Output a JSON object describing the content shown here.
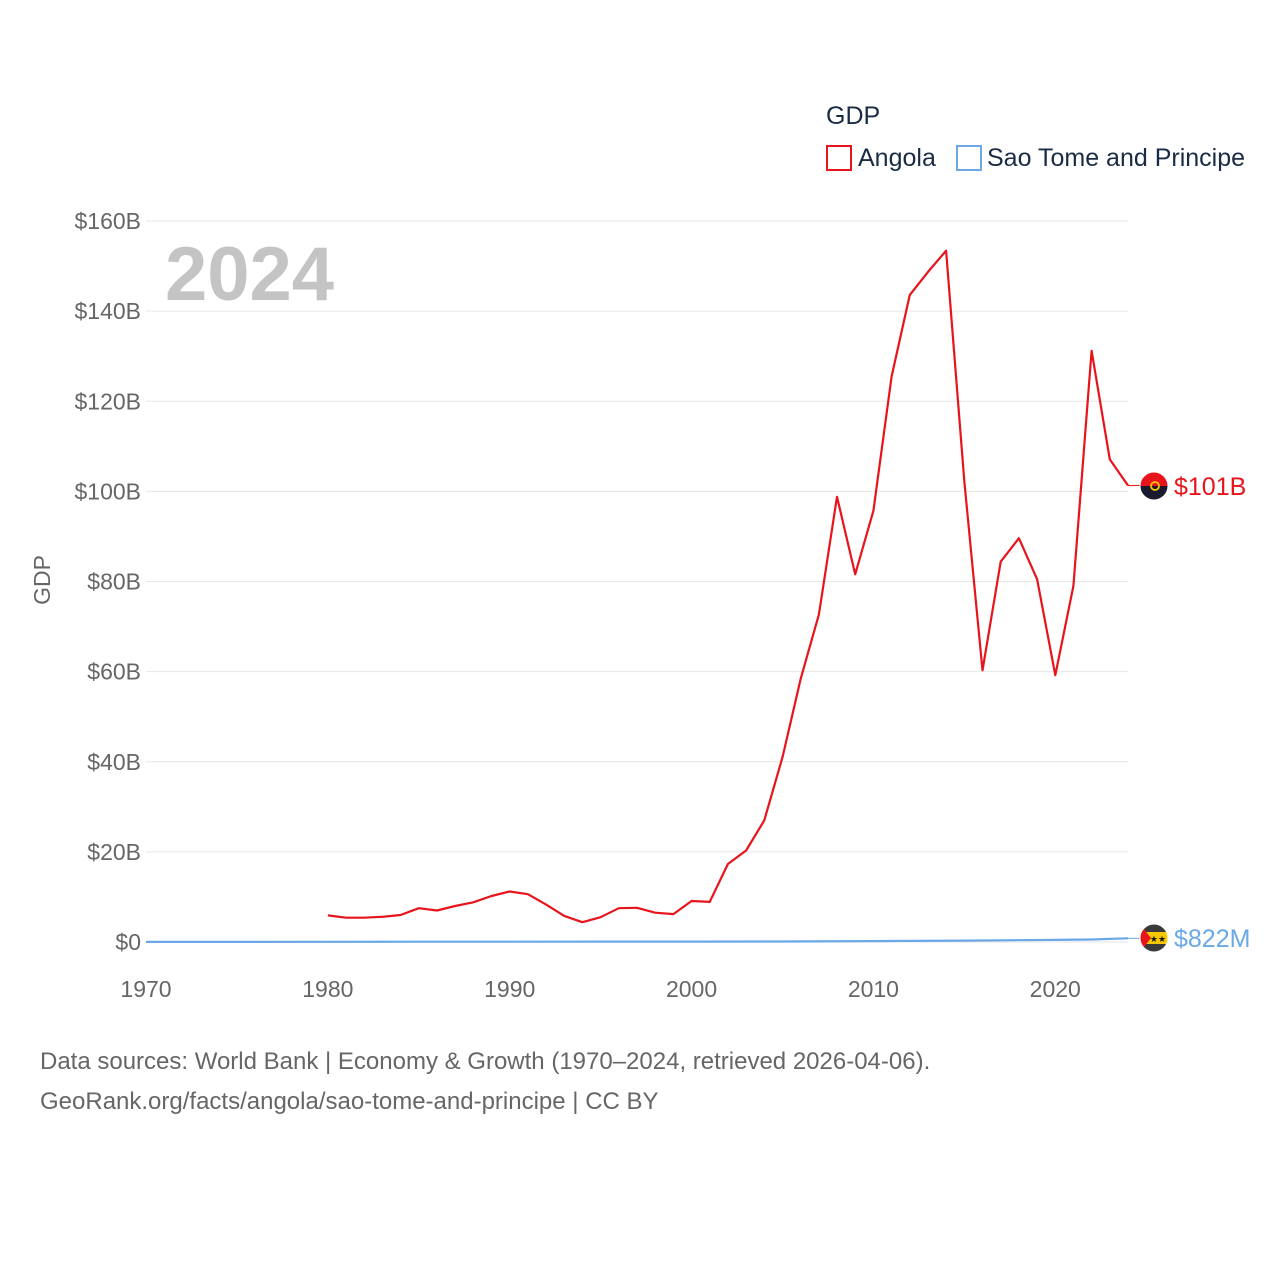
{
  "chart_data": {
    "type": "line",
    "title": "GDP",
    "ylabel": "GDP",
    "xlabel": "",
    "current_year": "2024",
    "xlim": [
      1970,
      2024
    ],
    "ylim": [
      0,
      160
    ],
    "y_unit": "billion USD",
    "x_ticks": [
      1970,
      1980,
      1990,
      2000,
      2010,
      2020
    ],
    "y_ticks": [
      {
        "value": 0,
        "label": "$0"
      },
      {
        "value": 20,
        "label": "$20B"
      },
      {
        "value": 40,
        "label": "$40B"
      },
      {
        "value": 60,
        "label": "$60B"
      },
      {
        "value": 80,
        "label": "$80B"
      },
      {
        "value": 100,
        "label": "$100B"
      },
      {
        "value": 120,
        "label": "$120B"
      },
      {
        "value": 140,
        "label": "$140B"
      },
      {
        "value": 160,
        "label": "$160B"
      }
    ],
    "legend_placement": "top-right",
    "series": [
      {
        "name": "Angola",
        "color": "#e8141b",
        "end_label": "$101B",
        "flag_icon": "angola-flag-icon",
        "x": [
          1980,
          1981,
          1982,
          1983,
          1984,
          1985,
          1986,
          1987,
          1988,
          1989,
          1990,
          1991,
          1992,
          1993,
          1994,
          1995,
          1996,
          1997,
          1998,
          1999,
          2000,
          2001,
          2002,
          2003,
          2004,
          2005,
          2006,
          2007,
          2008,
          2009,
          2010,
          2011,
          2012,
          2013,
          2014,
          2015,
          2016,
          2017,
          2018,
          2019,
          2020,
          2021,
          2022,
          2023,
          2024
        ],
        "values": [
          5.9,
          5.4,
          5.4,
          5.6,
          6.0,
          7.5,
          7.0,
          8.0,
          8.8,
          10.2,
          11.2,
          10.6,
          8.3,
          5.8,
          4.4,
          5.5,
          7.5,
          7.6,
          6.5,
          6.2,
          9.1,
          8.9,
          17.3,
          20.3,
          27.0,
          41.0,
          58.4,
          72.7,
          98.8,
          81.6,
          95.7,
          125.5,
          143.6,
          148.7,
          153.4,
          102.3,
          60.3,
          84.4,
          89.6,
          80.5,
          59.2,
          79.0,
          131.2,
          107.1,
          101.3
        ]
      },
      {
        "name": "Sao Tome and Principe",
        "color": "#6aa8e8",
        "end_label": "$822M",
        "flag_icon": "sao-tome-flag-icon",
        "x": [
          1970,
          1975,
          1980,
          1985,
          1990,
          1995,
          2000,
          2005,
          2010,
          2015,
          2020,
          2022,
          2023,
          2024
        ],
        "values": [
          0.02,
          0.03,
          0.05,
          0.06,
          0.07,
          0.08,
          0.08,
          0.11,
          0.2,
          0.32,
          0.47,
          0.55,
          0.68,
          0.822
        ]
      }
    ]
  },
  "source": {
    "line1": "Data sources: World Bank | Economy & Growth (1970–2024, retrieved 2026-04-06).",
    "line2": "GeoRank.org/facts/angola/sao-tome-and-principe | CC BY"
  }
}
